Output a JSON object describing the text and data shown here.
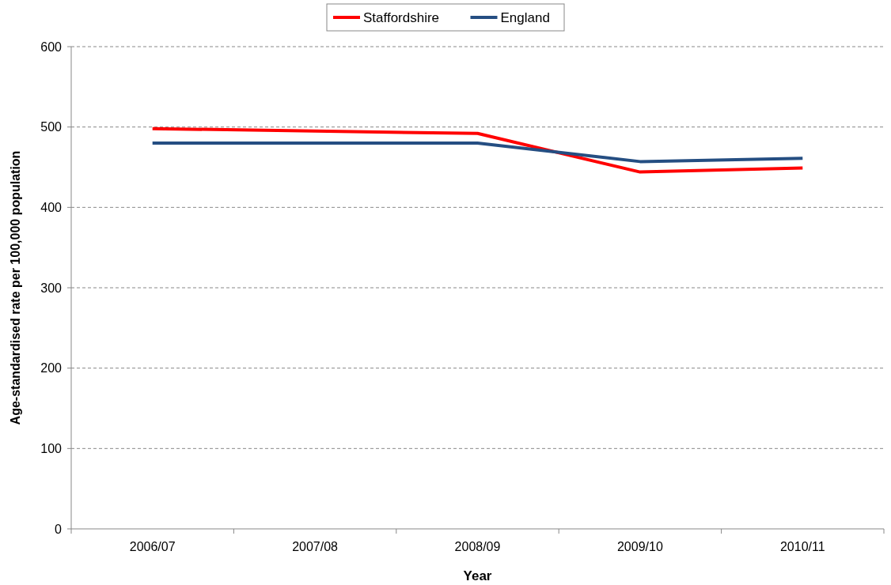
{
  "chart_data": {
    "type": "line",
    "xlabel": "Year",
    "ylabel": "Age-standardised rate per 100,000 population",
    "categories": [
      "2006/07",
      "2007/08",
      "2008/09",
      "2009/10",
      "2010/11"
    ],
    "series": [
      {
        "name": "Staffordshire",
        "color": "#ff0000",
        "values": [
          498,
          495,
          492,
          444,
          449
        ]
      },
      {
        "name": "England",
        "color": "#254e82",
        "values": [
          480,
          480,
          480,
          457,
          461
        ]
      }
    ],
    "ylim": [
      0,
      600
    ],
    "yticks": [
      0,
      100,
      200,
      300,
      400,
      500,
      600
    ],
    "grid": "y",
    "legend": "top",
    "marker": "none",
    "line_style": "solid"
  }
}
